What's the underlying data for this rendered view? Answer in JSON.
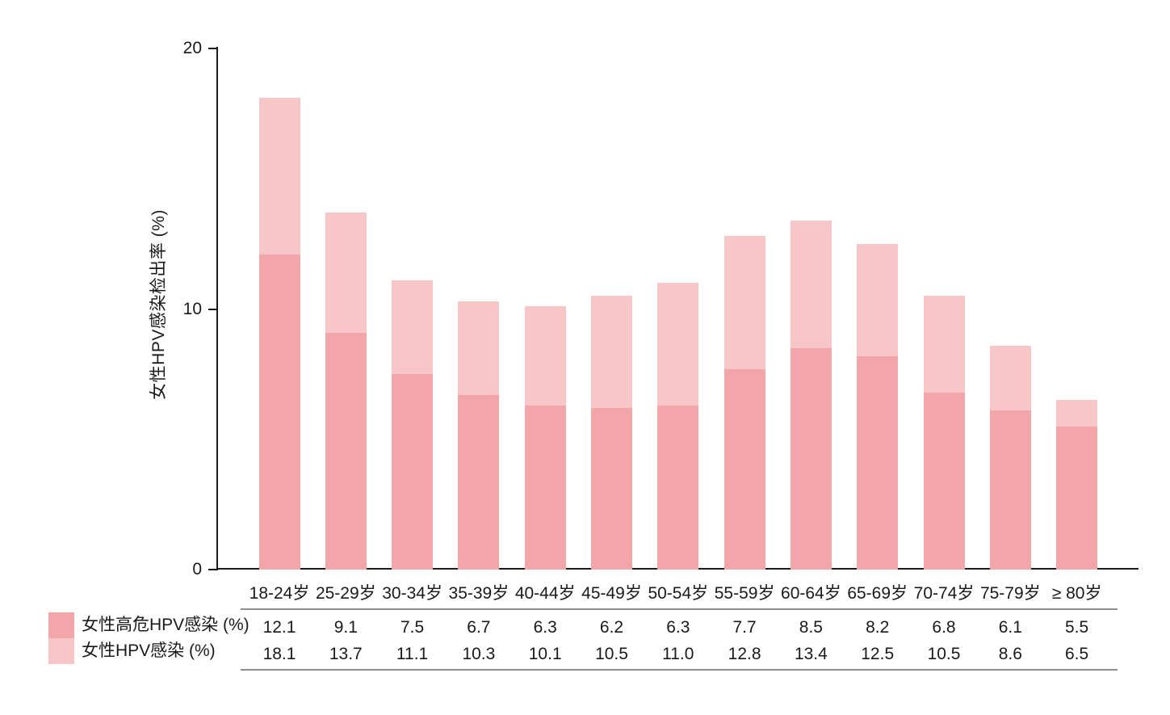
{
  "chart_data": {
    "type": "bar",
    "subtype": "overlay-stacked",
    "title": "",
    "y_title": "女性HPV感染检出率 (%)",
    "ylim": [
      0,
      20
    ],
    "y_ticks": [
      0,
      10,
      20
    ],
    "grid": false,
    "legend_position": "bottom-left",
    "categories": [
      "18-24岁",
      "25-29岁",
      "30-34岁",
      "35-39岁",
      "40-44岁",
      "45-49岁",
      "50-54岁",
      "55-59岁",
      "60-64岁",
      "65-69岁",
      "70-74岁",
      "75-79岁",
      "≥ 80岁"
    ],
    "series": [
      {
        "name": "女性高危HPV感染 (%)",
        "color": "#F2A6AA",
        "values": [
          12.1,
          9.1,
          7.5,
          6.7,
          6.3,
          6.2,
          6.3,
          7.7,
          8.5,
          8.2,
          6.8,
          6.1,
          5.5
        ]
      },
      {
        "name": "女性HPV感染 (%)",
        "color": "#F6C6C8",
        "values": [
          18.1,
          13.7,
          11.1,
          10.3,
          10.1,
          10.5,
          11.0,
          12.8,
          13.4,
          12.5,
          10.5,
          8.6,
          6.5
        ]
      }
    ]
  },
  "colors": {
    "axis": "#1a1a1a",
    "text": "#1a1a1a",
    "table_rule": "#8f8f8f",
    "background": "#ffffff"
  }
}
